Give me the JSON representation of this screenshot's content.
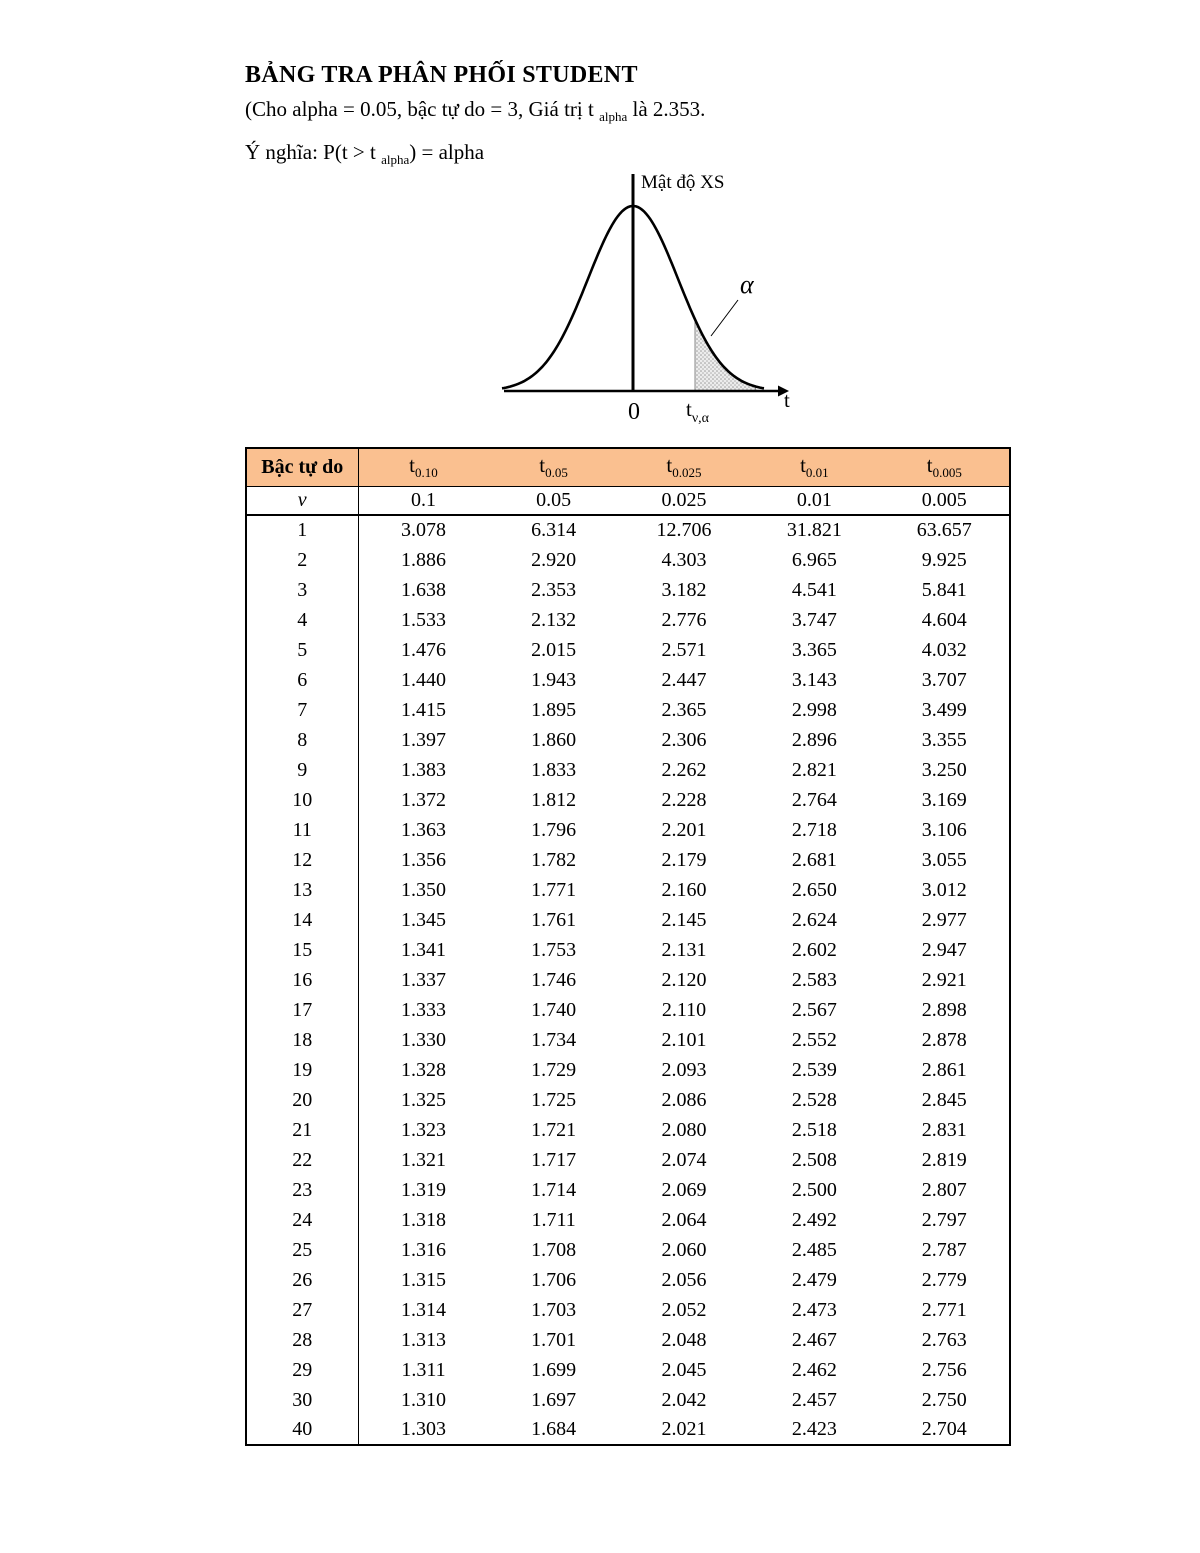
{
  "doc": {
    "title": "BẢNG TRA PHÂN PHỐI STUDENT",
    "line2": {
      "pre": "(Cho alpha = 0.05, bậc tự do = 3, Giá trị t ",
      "sub": "alpha",
      "post": " là 2.353."
    },
    "line3": {
      "pre": "Ý nghĩa: P(t > t ",
      "sub": "alpha",
      "post": ") = alpha"
    }
  },
  "diagram": {
    "ylabel": "Mật độ XS",
    "alpha_label": "α",
    "zero_label": "0",
    "t_label": "t",
    "crit_t": "t",
    "crit_sub": "ν,α"
  },
  "table": {
    "df_header": "Bậc tự do",
    "df_symbol": "ν",
    "t_prefix": "t",
    "t_columns": [
      "0.10",
      "0.05",
      "0.025",
      "0.01",
      "0.005"
    ],
    "alpha_values": [
      "0.1",
      "0.05",
      "0.025",
      "0.01",
      "0.005"
    ],
    "rows": [
      {
        "df": "1",
        "values": [
          "3.078",
          "6.314",
          "12.706",
          "31.821",
          "63.657"
        ]
      },
      {
        "df": "2",
        "values": [
          "1.886",
          "2.920",
          "4.303",
          "6.965",
          "9.925"
        ]
      },
      {
        "df": "3",
        "values": [
          "1.638",
          "2.353",
          "3.182",
          "4.541",
          "5.841"
        ]
      },
      {
        "df": "4",
        "values": [
          "1.533",
          "2.132",
          "2.776",
          "3.747",
          "4.604"
        ]
      },
      {
        "df": "5",
        "values": [
          "1.476",
          "2.015",
          "2.571",
          "3.365",
          "4.032"
        ]
      },
      {
        "df": "6",
        "values": [
          "1.440",
          "1.943",
          "2.447",
          "3.143",
          "3.707"
        ]
      },
      {
        "df": "7",
        "values": [
          "1.415",
          "1.895",
          "2.365",
          "2.998",
          "3.499"
        ]
      },
      {
        "df": "8",
        "values": [
          "1.397",
          "1.860",
          "2.306",
          "2.896",
          "3.355"
        ]
      },
      {
        "df": "9",
        "values": [
          "1.383",
          "1.833",
          "2.262",
          "2.821",
          "3.250"
        ]
      },
      {
        "df": "10",
        "values": [
          "1.372",
          "1.812",
          "2.228",
          "2.764",
          "3.169"
        ]
      },
      {
        "df": "11",
        "values": [
          "1.363",
          "1.796",
          "2.201",
          "2.718",
          "3.106"
        ]
      },
      {
        "df": "12",
        "values": [
          "1.356",
          "1.782",
          "2.179",
          "2.681",
          "3.055"
        ]
      },
      {
        "df": "13",
        "values": [
          "1.350",
          "1.771",
          "2.160",
          "2.650",
          "3.012"
        ]
      },
      {
        "df": "14",
        "values": [
          "1.345",
          "1.761",
          "2.145",
          "2.624",
          "2.977"
        ]
      },
      {
        "df": "15",
        "values": [
          "1.341",
          "1.753",
          "2.131",
          "2.602",
          "2.947"
        ]
      },
      {
        "df": "16",
        "values": [
          "1.337",
          "1.746",
          "2.120",
          "2.583",
          "2.921"
        ]
      },
      {
        "df": "17",
        "values": [
          "1.333",
          "1.740",
          "2.110",
          "2.567",
          "2.898"
        ]
      },
      {
        "df": "18",
        "values": [
          "1.330",
          "1.734",
          "2.101",
          "2.552",
          "2.878"
        ]
      },
      {
        "df": "19",
        "values": [
          "1.328",
          "1.729",
          "2.093",
          "2.539",
          "2.861"
        ]
      },
      {
        "df": "20",
        "values": [
          "1.325",
          "1.725",
          "2.086",
          "2.528",
          "2.845"
        ]
      },
      {
        "df": "21",
        "values": [
          "1.323",
          "1.721",
          "2.080",
          "2.518",
          "2.831"
        ]
      },
      {
        "df": "22",
        "values": [
          "1.321",
          "1.717",
          "2.074",
          "2.508",
          "2.819"
        ]
      },
      {
        "df": "23",
        "values": [
          "1.319",
          "1.714",
          "2.069",
          "2.500",
          "2.807"
        ]
      },
      {
        "df": "24",
        "values": [
          "1.318",
          "1.711",
          "2.064",
          "2.492",
          "2.797"
        ]
      },
      {
        "df": "25",
        "values": [
          "1.316",
          "1.708",
          "2.060",
          "2.485",
          "2.787"
        ]
      },
      {
        "df": "26",
        "values": [
          "1.315",
          "1.706",
          "2.056",
          "2.479",
          "2.779"
        ]
      },
      {
        "df": "27",
        "values": [
          "1.314",
          "1.703",
          "2.052",
          "2.473",
          "2.771"
        ]
      },
      {
        "df": "28",
        "values": [
          "1.313",
          "1.701",
          "2.048",
          "2.467",
          "2.763"
        ]
      },
      {
        "df": "29",
        "values": [
          "1.311",
          "1.699",
          "2.045",
          "2.462",
          "2.756"
        ]
      },
      {
        "df": "30",
        "values": [
          "1.310",
          "1.697",
          "2.042",
          "2.457",
          "2.750"
        ]
      },
      {
        "df": "40",
        "values": [
          "1.303",
          "1.684",
          "2.021",
          "2.423",
          "2.704"
        ]
      }
    ]
  }
}
